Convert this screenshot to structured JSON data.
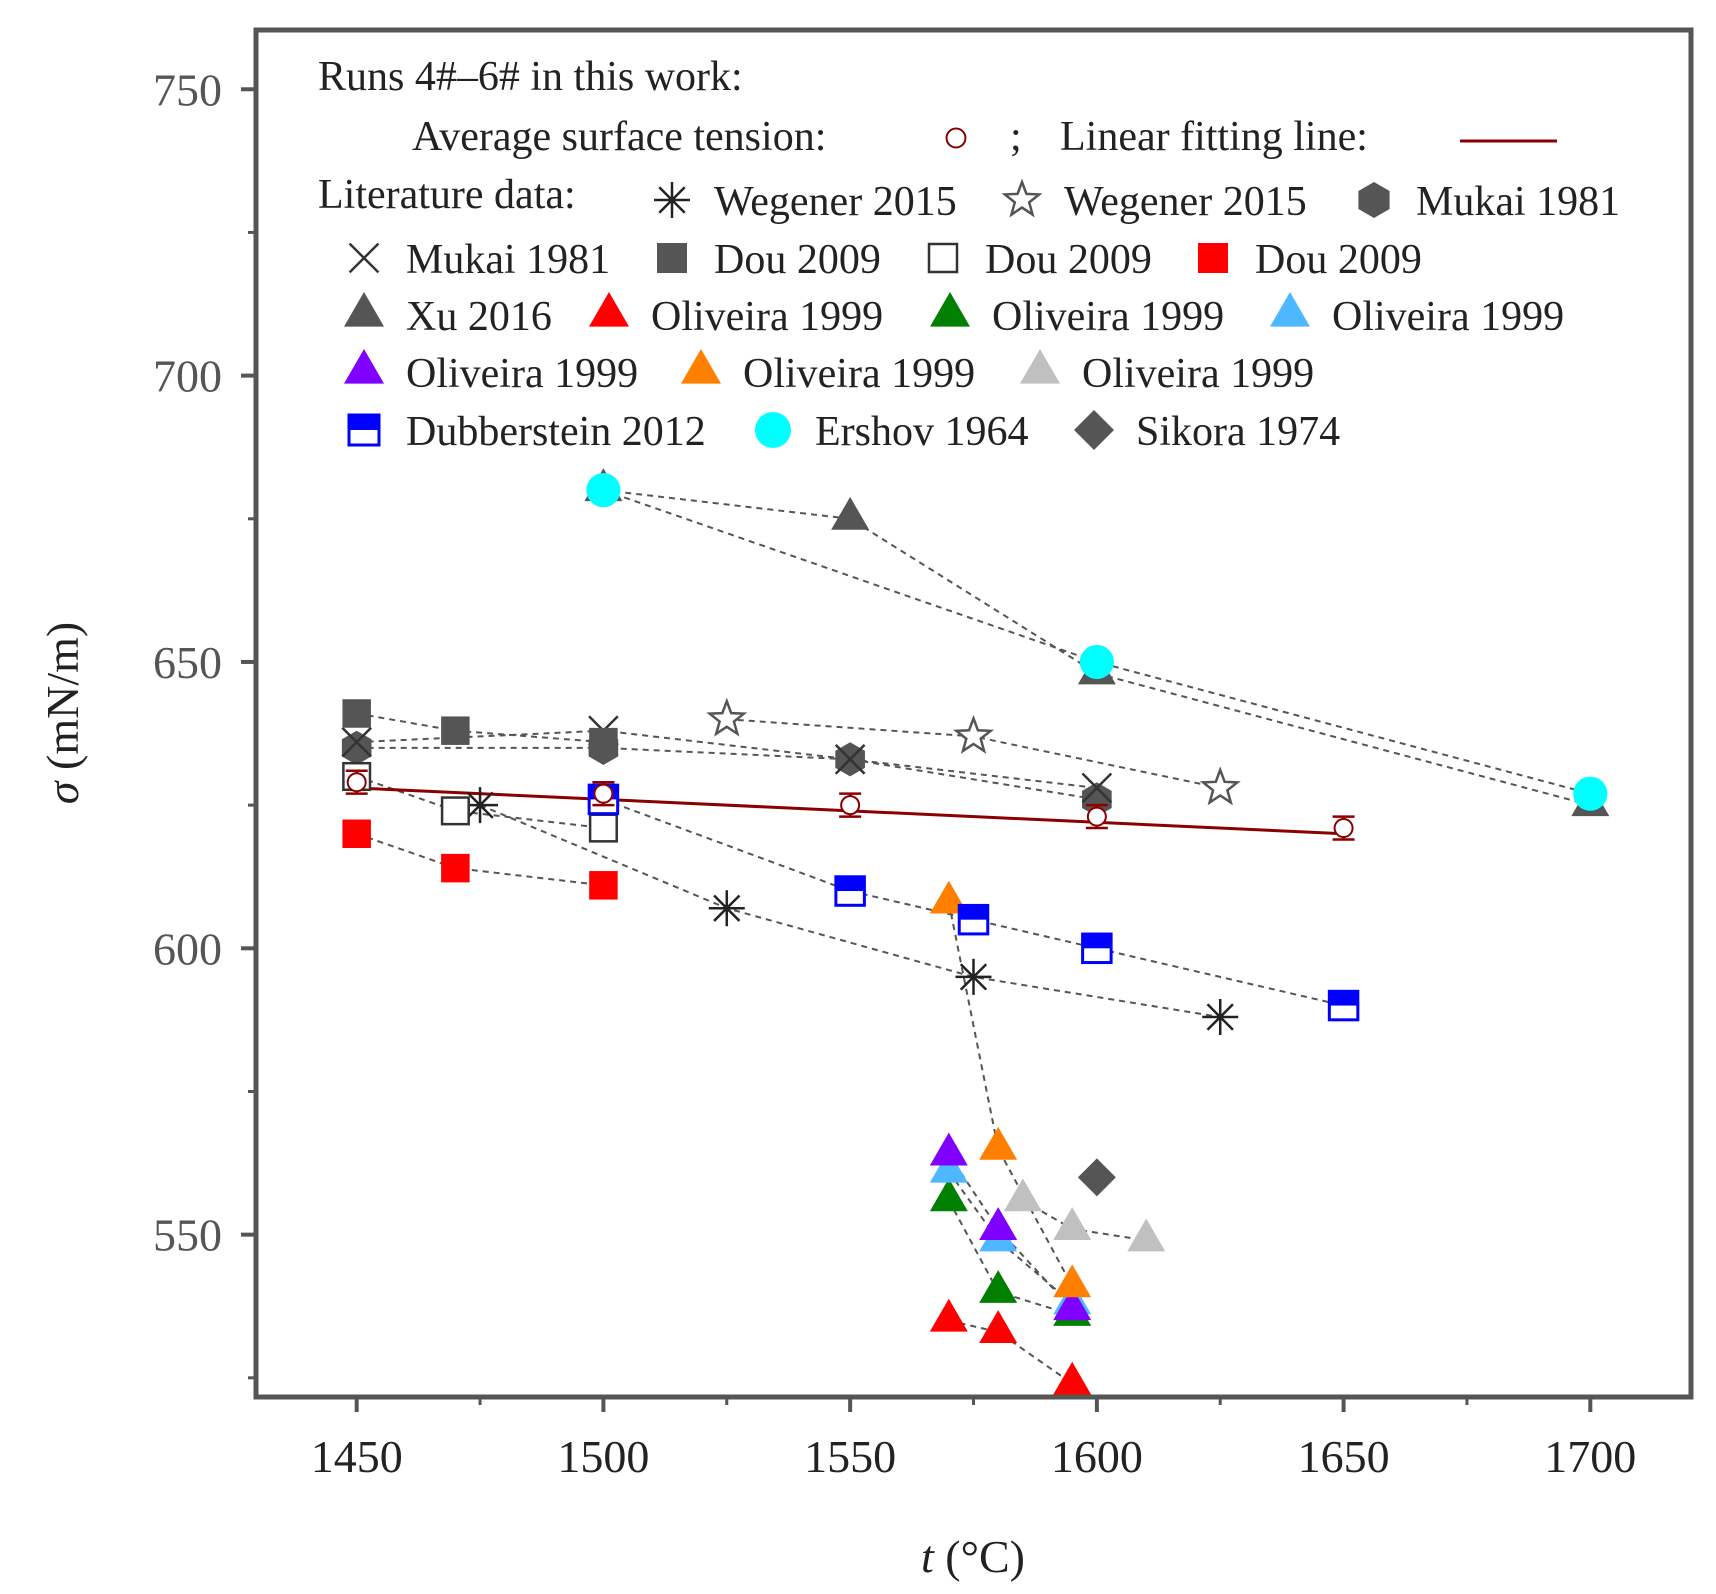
{
  "chart_data": {
    "type": "scatter",
    "title": "",
    "xlabel": {
      "var": "t",
      "unit": " (°C)"
    },
    "ylabel": {
      "var": "σ",
      "unit": " (mN/m)"
    },
    "xlim": [
      1430,
      1720
    ],
    "ylim": [
      522,
      760
    ],
    "xticks": [
      1450,
      1500,
      1550,
      1600,
      1650,
      1700
    ],
    "yticks": [
      550,
      600,
      650,
      700,
      750
    ],
    "legend": {
      "line1": "Runs 4#–6# in this work:",
      "avg_label": "Average surface tension:",
      "sep": ";",
      "fit_label": "Linear fitting line:",
      "lit_label": "Literature data:",
      "entries": [
        "Wegener 2015",
        "Wegener 2015",
        "Mukai 1981",
        "Mukai 1981",
        "Dou 2009",
        "Dou 2009",
        "Dou 2009",
        "Xu 2016",
        "Oliveira 1999",
        "Oliveira 1999",
        "Oliveira 1999",
        "Oliveira 1999",
        "Oliveira 1999",
        "Oliveira 1999",
        "Dubberstein 2012",
        "Ershov 1964",
        "Sikora 1974"
      ]
    },
    "this_work": {
      "x": [
        1450,
        1500,
        1550,
        1600,
        1650
      ],
      "y": [
        629,
        627,
        625,
        623,
        621
      ],
      "err": [
        2,
        2,
        2,
        2,
        2
      ],
      "fit": {
        "x": [
          1450,
          1650
        ],
        "y": [
          628,
          620
        ]
      }
    },
    "series": [
      {
        "name": "Wegener 2015",
        "marker": "asterisk",
        "color": "#222222",
        "x": [
          1475,
          1525,
          1575,
          1625
        ],
        "y": [
          625,
          607,
          595,
          588
        ]
      },
      {
        "name": "Wegener 2015",
        "marker": "star-open",
        "color": "#555555",
        "x": [
          1525,
          1575,
          1625
        ],
        "y": [
          640,
          637,
          628
        ]
      },
      {
        "name": "Mukai 1981",
        "marker": "hexagon",
        "color": "#555555",
        "x": [
          1450,
          1500,
          1550,
          1600
        ],
        "y": [
          635,
          635,
          633,
          626
        ]
      },
      {
        "name": "Mukai 1981",
        "marker": "x",
        "color": "#333333",
        "x": [
          1450,
          1500,
          1550,
          1600
        ],
        "y": [
          636,
          638,
          633,
          628
        ]
      },
      {
        "name": "Dou 2009",
        "marker": "square",
        "color": "#555555",
        "x": [
          1450,
          1470,
          1500
        ],
        "y": [
          641,
          638,
          636
        ]
      },
      {
        "name": "Dou 2009",
        "marker": "square-open",
        "color": "#333333",
        "x": [
          1450,
          1470,
          1500
        ],
        "y": [
          630,
          624,
          621
        ]
      },
      {
        "name": "Dou 2009",
        "marker": "square",
        "color": "#ff0000",
        "x": [
          1450,
          1470,
          1500
        ],
        "y": [
          620,
          614,
          611
        ]
      },
      {
        "name": "Xu 2016",
        "marker": "triangle",
        "color": "#555555",
        "x": [
          1500,
          1550,
          1600,
          1700
        ],
        "y": [
          680,
          675,
          648,
          625
        ]
      },
      {
        "name": "Oliveira 1999",
        "marker": "triangle",
        "color": "#ff0000",
        "x": [
          1570,
          1580,
          1595
        ],
        "y": [
          535,
          533,
          524
        ]
      },
      {
        "name": "Oliveira 1999",
        "marker": "triangle",
        "color": "#008000",
        "x": [
          1570,
          1580,
          1595
        ],
        "y": [
          556,
          540,
          536
        ]
      },
      {
        "name": "Oliveira 1999",
        "marker": "triangle",
        "color": "#4db8ff",
        "x": [
          1570,
          1580,
          1595
        ],
        "y": [
          561,
          549,
          538
        ]
      },
      {
        "name": "Oliveira 1999",
        "marker": "triangle",
        "color": "#8000ff",
        "x": [
          1570,
          1580,
          1595
        ],
        "y": [
          564,
          551,
          537
        ]
      },
      {
        "name": "Oliveira 1999",
        "marker": "triangle",
        "color": "#ff8000",
        "x": [
          1570,
          1580,
          1595
        ],
        "y": [
          608,
          565,
          541
        ]
      },
      {
        "name": "Oliveira 1999",
        "marker": "triangle",
        "color": "#c0c0c0",
        "x": [
          1585,
          1595,
          1610
        ],
        "y": [
          556,
          551,
          549
        ]
      },
      {
        "name": "Dubberstein 2012",
        "marker": "square-half",
        "color": "#0000ff",
        "x": [
          1500,
          1550,
          1575,
          1600,
          1650
        ],
        "y": [
          626,
          610,
          605,
          600,
          590
        ]
      },
      {
        "name": "Ershov 1964",
        "marker": "circle",
        "color": "#00ffff",
        "x": [
          1500,
          1600,
          1700
        ],
        "y": [
          680,
          650,
          627
        ]
      },
      {
        "name": "Sikora 1974",
        "marker": "diamond",
        "color": "#555555",
        "x": [
          1600
        ],
        "y": [
          560
        ]
      }
    ],
    "colors": {
      "axis": "#555555",
      "fit_line": "#8b0000",
      "avg_marker": "#8b0000",
      "dash": "#555555"
    }
  }
}
